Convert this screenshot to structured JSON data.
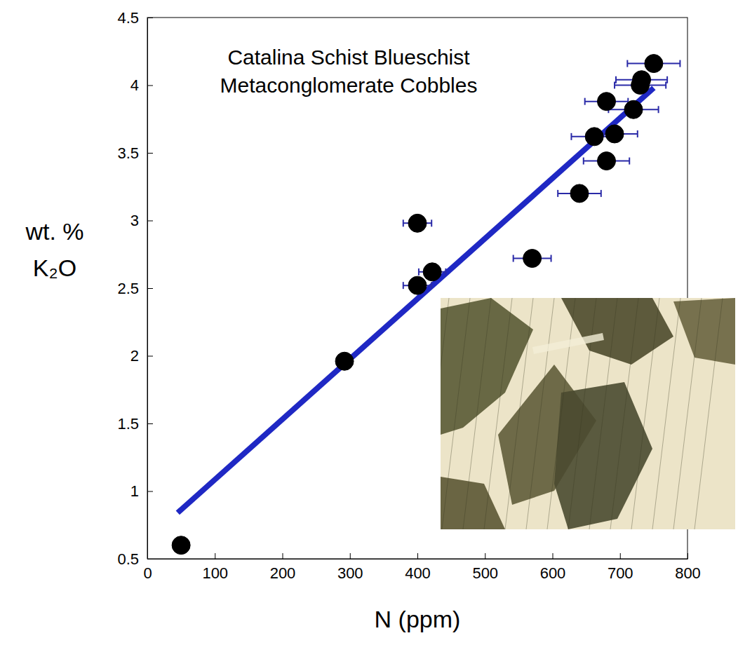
{
  "chart_data": {
    "type": "scatter",
    "title": [
      "Catalina Schist Blueschist",
      "Metaconglomerate Cobbles"
    ],
    "x_label": "N (ppm)",
    "y_label": [
      "wt. %",
      "K₂O"
    ],
    "xlim": [
      0,
      800
    ],
    "xticks": [
      0,
      100,
      200,
      300,
      400,
      500,
      600,
      700,
      800
    ],
    "ylim": [
      0.5,
      4.5
    ],
    "yticks": [
      0.5,
      1,
      1.5,
      2,
      2.5,
      3,
      3.5,
      4,
      4.5
    ],
    "grid": false,
    "series": [
      {
        "type": "scatter",
        "marker": "circle",
        "color": "#000000",
        "x": [
          50,
          292,
          400,
          400,
          422,
          570,
          640,
          662,
          680,
          680,
          692,
          720,
          730,
          732,
          750
        ],
        "values": [
          0.6,
          1.96,
          2.98,
          2.52,
          2.62,
          2.72,
          3.2,
          3.62,
          3.44,
          3.88,
          3.64,
          3.82,
          4.0,
          4.04,
          4.16
        ],
        "x_errors": [
          null,
          null,
          21,
          21,
          20,
          28,
          32,
          34,
          34,
          32,
          34,
          37,
          38,
          38,
          39
        ]
      },
      {
        "type": "line",
        "line_style": "solid",
        "color": "#1f28c4",
        "x": [
          45,
          750
        ],
        "values": [
          0.84,
          3.98
        ]
      }
    ]
  }
}
